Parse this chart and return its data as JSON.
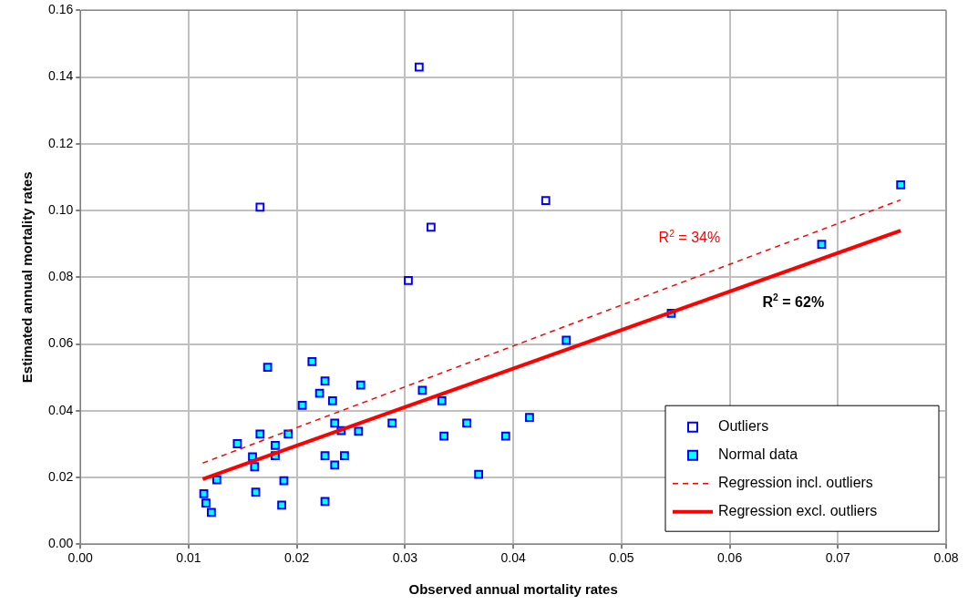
{
  "chart_data": {
    "type": "scatter",
    "xlabel": "Observed annual mortality rates",
    "ylabel": "Estimated annual mortality rates",
    "xlim": [
      0,
      0.08
    ],
    "ylim": [
      0,
      0.16
    ],
    "xticks": [
      {
        "value": 0,
        "label": "0.00"
      },
      {
        "value": 0.01,
        "label": "0.01"
      },
      {
        "value": 0.02,
        "label": "0.02"
      },
      {
        "value": 0.03,
        "label": "0.03"
      },
      {
        "value": 0.04,
        "label": "0.04"
      },
      {
        "value": 0.05,
        "label": "0.05"
      },
      {
        "value": 0.06,
        "label": "0.06"
      },
      {
        "value": 0.07,
        "label": "0.07"
      },
      {
        "value": 0.08,
        "label": "0.08"
      }
    ],
    "yticks": [
      {
        "value": 0,
        "label": "0.00"
      },
      {
        "value": 0.02,
        "label": "0.02"
      },
      {
        "value": 0.04,
        "label": "0.04"
      },
      {
        "value": 0.06,
        "label": "0.06"
      },
      {
        "value": 0.08,
        "label": "0.08"
      },
      {
        "value": 0.1,
        "label": "0.10"
      },
      {
        "value": 0.12,
        "label": "0.12"
      },
      {
        "value": 0.14,
        "label": "0.14"
      },
      {
        "value": 0.16,
        "label": "0.16"
      }
    ],
    "grid": true,
    "legend": "bottom right",
    "marker": "square",
    "series": [
      {
        "name": "Outliers",
        "color": "#ffffff",
        "x": [
          0.0166,
          0.0313,
          0.0324,
          0.0303,
          0.043
        ],
        "values": [
          0.101,
          0.143,
          0.095,
          0.079,
          0.103
        ]
      },
      {
        "name": "Normal data",
        "color": "#00ffff",
        "x": [
          0.0173,
          0.0214,
          0.0226,
          0.0259,
          0.0221,
          0.0233,
          0.0205,
          0.0316,
          0.0334,
          0.0235,
          0.0241,
          0.0257,
          0.0288,
          0.0357,
          0.0336,
          0.0166,
          0.0192,
          0.0145,
          0.018,
          0.0159,
          0.018,
          0.0161,
          0.0226,
          0.0244,
          0.0235,
          0.0126,
          0.0188,
          0.0162,
          0.0114,
          0.0116,
          0.0121,
          0.0186,
          0.0226,
          0.0393,
          0.0415,
          0.0368,
          0.0758,
          0.0685,
          0.0546,
          0.0449
        ],
        "values": [
          0.053,
          0.0547,
          0.0489,
          0.0477,
          0.0452,
          0.043,
          0.0416,
          0.0461,
          0.043,
          0.0363,
          0.034,
          0.0338,
          0.0363,
          0.0363,
          0.0324,
          0.033,
          0.033,
          0.0301,
          0.0296,
          0.0262,
          0.0265,
          0.0232,
          0.0265,
          0.0265,
          0.0237,
          0.0193,
          0.019,
          0.0156,
          0.0151,
          0.0123,
          0.0095,
          0.0117,
          0.0128,
          0.0324,
          0.038,
          0.0209,
          0.1077,
          0.0899,
          0.0692,
          0.0611
        ]
      },
      {
        "name": "Regression incl. outliers",
        "type": "line",
        "line_style": "dashed",
        "marker": "none",
        "color": "#ff0000",
        "x": [
          0.0113,
          0.0758
        ],
        "values": [
          0.0243,
          0.1032
        ]
      },
      {
        "name": "Regression excl. outliers",
        "type": "line",
        "line_style": "solid",
        "marker": "none",
        "color": "#ff0000",
        "x": [
          0.0113,
          0.0758
        ],
        "values": [
          0.0195,
          0.094
        ]
      }
    ],
    "annotations": [
      "R$^{2}$ = 34%",
      "R$^{2}$ = 62%"
    ]
  }
}
